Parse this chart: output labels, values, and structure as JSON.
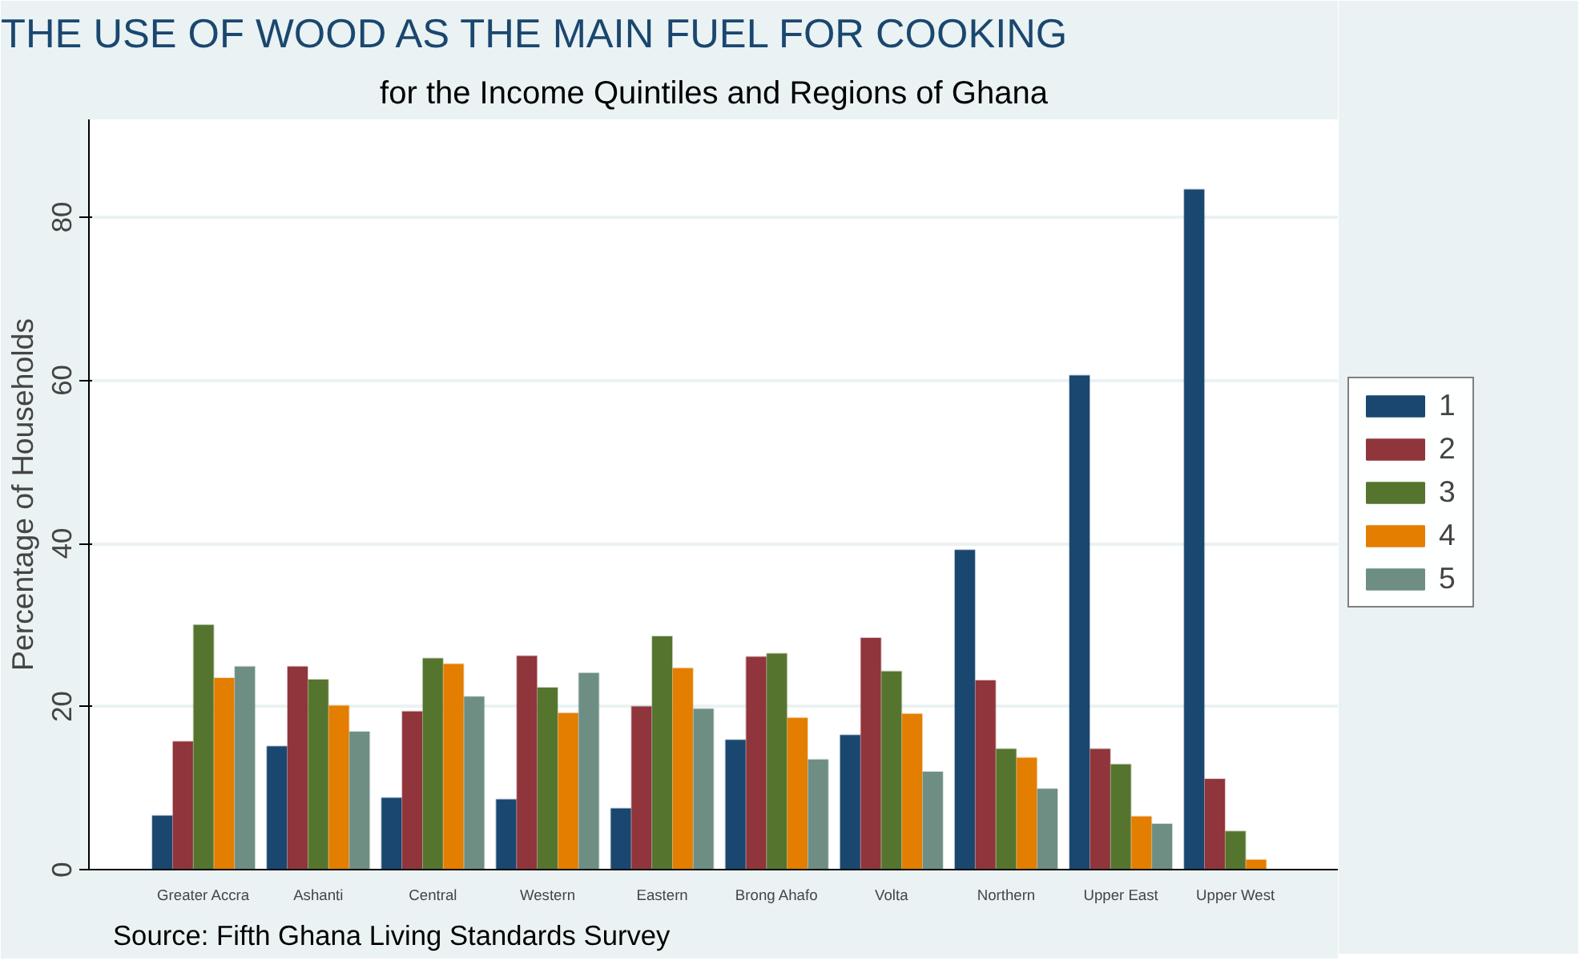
{
  "chart_data": {
    "type": "bar",
    "title": "THE USE OF WOOD AS THE MAIN FUEL FOR COOKING",
    "subtitle": "for the Income Quintiles and Regions of Ghana",
    "ylabel": "Percentage of Households",
    "annotations": [
      "Source: Fifth Ghana Living Standards Survey"
    ],
    "categories": [
      "Greater Accra",
      "Ashanti",
      "Central",
      "Western",
      "Eastern",
      "Brong Ahafo",
      "Volta",
      "Northern",
      "Upper East",
      "Upper West"
    ],
    "series": [
      {
        "name": "1",
        "color": "#1a476f",
        "values": [
          6.6,
          15.1,
          8.8,
          8.6,
          7.5,
          15.9,
          16.5,
          39.2,
          60.6,
          83.4
        ]
      },
      {
        "name": "2",
        "color": "#90353b",
        "values": [
          15.7,
          24.9,
          19.4,
          26.2,
          20.0,
          26.1,
          28.4,
          23.2,
          14.8,
          11.1
        ]
      },
      {
        "name": "3",
        "color": "#55752f",
        "values": [
          30.0,
          23.3,
          25.9,
          22.3,
          28.6,
          26.5,
          24.3,
          14.8,
          12.9,
          4.7
        ]
      },
      {
        "name": "4",
        "color": "#e37e00",
        "values": [
          23.5,
          20.1,
          25.2,
          19.2,
          24.7,
          18.6,
          19.1,
          13.7,
          6.5,
          1.2
        ]
      },
      {
        "name": "5",
        "color": "#6e8e84",
        "values": [
          24.9,
          16.9,
          21.2,
          24.1,
          19.7,
          13.5,
          12.0,
          9.9,
          5.6,
          null
        ]
      }
    ],
    "ylim": [
      0,
      92
    ],
    "yticks": [
      0,
      20,
      40,
      60,
      80
    ],
    "grid": "y",
    "legend": "right"
  }
}
